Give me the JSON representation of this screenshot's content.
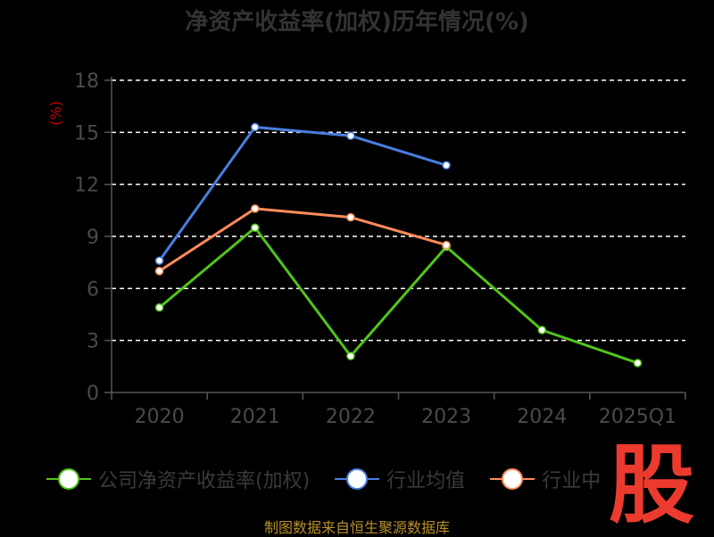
{
  "chart_data": {
    "type": "line",
    "title": "净资产收益率(加权)历年情况(%)",
    "ylabel": "(%)",
    "xlabel": "",
    "categories": [
      "2020",
      "2021",
      "2022",
      "2023",
      "2024",
      "2025Q1"
    ],
    "ylim": [
      0,
      18
    ],
    "yticks": [
      0,
      3,
      6,
      9,
      12,
      15,
      18
    ],
    "grid": true,
    "legend_position": "bottom",
    "series": [
      {
        "name": "公司净资产收益率(加权)",
        "color": "#52c41a",
        "values": [
          4.9,
          9.5,
          2.1,
          8.4,
          3.6,
          1.7
        ]
      },
      {
        "name": "行业均值",
        "color": "#4a7ee0",
        "values": [
          7.6,
          15.3,
          14.8,
          13.1,
          null,
          null
        ]
      },
      {
        "name": "行业中位数",
        "color": "#ff8c5a",
        "values": [
          7.0,
          10.6,
          10.1,
          8.5,
          null,
          null
        ]
      }
    ]
  },
  "legend_labels": [
    "公司净资产收益率(加权)",
    "行业均值",
    "行业中"
  ],
  "source_note": "制图数据来自恒生聚源数据库",
  "watermark": "股",
  "colors": {
    "axis": "#555555",
    "grid": "#ffffff",
    "ylabel": "#cc0000",
    "tick_text": "#4a4a4a"
  }
}
